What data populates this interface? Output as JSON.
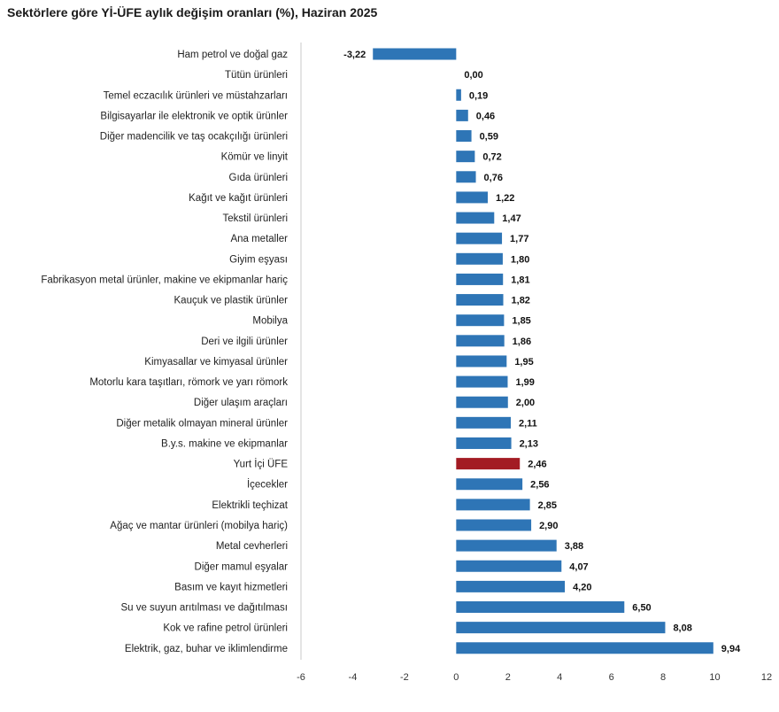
{
  "chart_data": {
    "type": "bar",
    "orientation": "horizontal",
    "title": "Sektörlere göre Yİ-ÜFE aylık değişim oranları (%), Haziran 2025",
    "categories": [
      "Ham petrol ve doğal gaz",
      "Tütün ürünleri",
      "Temel eczacılık ürünleri ve müstahzarları",
      "Bilgisayarlar ile elektronik ve optik ürünler",
      "Diğer madencilik ve taş ocakçılığı ürünleri",
      "Kömür ve linyit",
      "Gıda ürünleri",
      "Kağıt ve kağıt ürünleri",
      "Tekstil ürünleri",
      "Ana metaller",
      "Giyim eşyası",
      "Fabrikasyon metal ürünler, makine ve ekipmanlar hariç",
      "Kauçuk ve plastik ürünler",
      "Mobilya",
      "Deri ve ilgili ürünler",
      "Kimyasallar ve kimyasal ürünler",
      "Motorlu kara taşıtları, römork ve yarı römork",
      "Diğer ulaşım araçları",
      "Diğer metalik olmayan mineral ürünler",
      "B.y.s. makine ve ekipmanlar",
      "Yurt İçi ÜFE",
      "İçecekler",
      "Elektrikli teçhizat",
      "Ağaç ve mantar ürünleri (mobilya hariç)",
      "Metal cevherleri",
      "Diğer mamul eşyalar",
      "Basım ve kayıt hizmetleri",
      "Su ve suyun arıtılması ve dağıtılması",
      "Kok ve rafine petrol ürünleri",
      "Elektrik, gaz, buhar ve iklimlendirme"
    ],
    "values": [
      -3.22,
      0.0,
      0.19,
      0.46,
      0.59,
      0.72,
      0.76,
      1.22,
      1.47,
      1.77,
      1.8,
      1.81,
      1.82,
      1.85,
      1.86,
      1.95,
      1.99,
      2.0,
      2.11,
      2.13,
      2.46,
      2.56,
      2.85,
      2.9,
      3.88,
      4.07,
      4.2,
      6.5,
      8.08,
      9.94
    ],
    "value_labels": [
      "-3,22",
      "0,00",
      "0,19",
      "0,46",
      "0,59",
      "0,72",
      "0,76",
      "1,22",
      "1,47",
      "1,77",
      "1,80",
      "1,81",
      "1,82",
      "1,85",
      "1,86",
      "1,95",
      "1,99",
      "2,00",
      "2,11",
      "2,13",
      "2,46",
      "2,56",
      "2,85",
      "2,90",
      "3,88",
      "4,07",
      "4,20",
      "6,50",
      "8,08",
      "9,94"
    ],
    "highlight": "Yurt İçi ÜFE",
    "xlim": [
      -6,
      12
    ],
    "xticks": [
      -6,
      -4,
      -2,
      0,
      2,
      4,
      6,
      8,
      10,
      12
    ],
    "xlabel": "",
    "ylabel": "",
    "grid": false,
    "legend": "none",
    "colors": {
      "bar": "#2e75b6",
      "highlight": "#a31b23",
      "axis": "#c8c8c8"
    }
  }
}
